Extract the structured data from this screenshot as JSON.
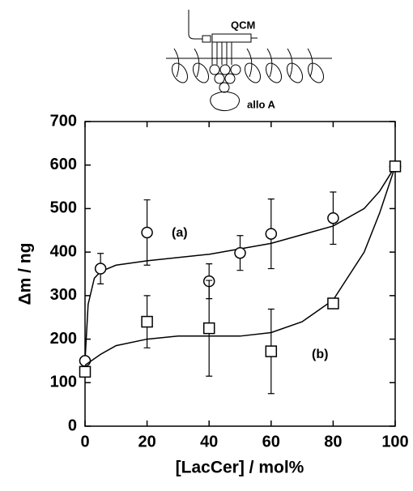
{
  "chart_data": {
    "type": "scatter",
    "xlabel": "[LacCer] / mol%",
    "ylabel": "Δm / ng",
    "xlim": [
      0,
      100
    ],
    "xticks": [
      0,
      20,
      40,
      60,
      80,
      100
    ],
    "ylim": [
      0,
      700
    ],
    "yticks": [
      0,
      100,
      200,
      300,
      400,
      500,
      600,
      700
    ],
    "annotations": [
      "(a)",
      "(b)",
      "QCM",
      "allo A"
    ],
    "series": [
      {
        "name": "(a)",
        "marker": "circle",
        "color": "#000000",
        "x": [
          0,
          5,
          20,
          40,
          50,
          60,
          80,
          100
        ],
        "values": [
          150,
          362,
          445,
          333,
          398,
          442,
          478,
          597
        ],
        "errors": [
          null,
          35,
          75,
          40,
          40,
          80,
          60,
          null
        ],
        "fit_x": [
          0,
          1,
          3,
          5,
          10,
          20,
          40,
          60,
          80,
          90,
          95,
          100
        ],
        "fit_y": [
          150,
          280,
          340,
          355,
          370,
          380,
          395,
          420,
          460,
          500,
          540,
          597
        ]
      },
      {
        "name": "(b)",
        "marker": "square",
        "color": "#000000",
        "x": [
          0,
          20,
          40,
          60,
          80,
          100
        ],
        "values": [
          125,
          240,
          225,
          172,
          282,
          597
        ],
        "errors": [
          null,
          60,
          110,
          97,
          null,
          null
        ],
        "fit_x": [
          0,
          5,
          10,
          20,
          30,
          40,
          50,
          60,
          70,
          80,
          90,
          95,
          100
        ],
        "fit_y": [
          140,
          165,
          185,
          200,
          207,
          207,
          207,
          215,
          240,
          290,
          400,
          490,
          597
        ]
      }
    ]
  }
}
